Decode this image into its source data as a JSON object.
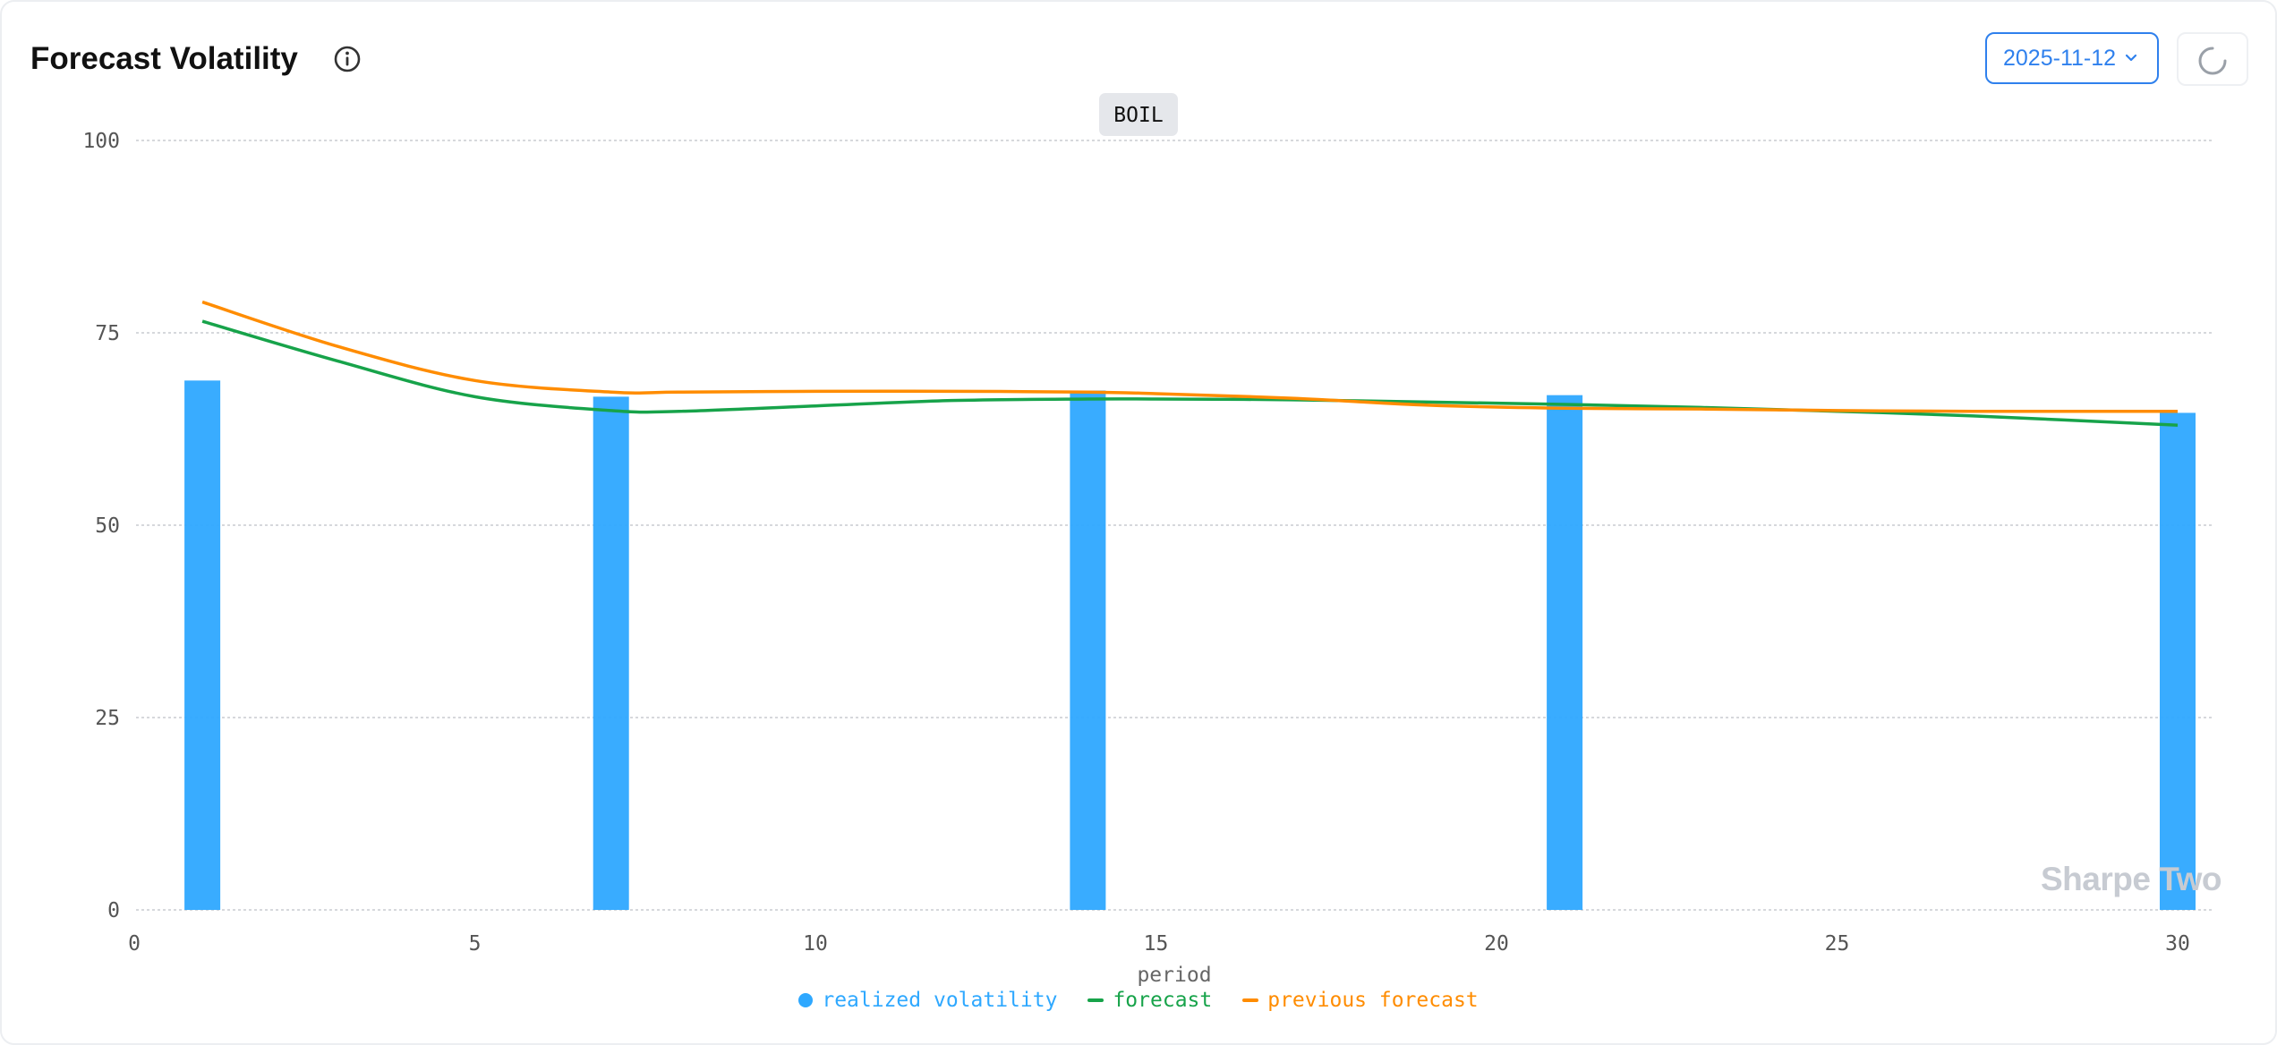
{
  "header": {
    "title": "Forecast Volatility",
    "date_value": "2025-11-12",
    "info_icon": "info-icon",
    "refresh_icon": "spinner-icon"
  },
  "watermark": "Sharpe Two",
  "colors": {
    "realized": "#2ea8ff",
    "forecast": "#17a34a",
    "previous": "#ff8c00",
    "accent": "#2f80ed"
  },
  "legend": {
    "realized": "realized volatility",
    "forecast": "forecast",
    "previous": "previous forecast"
  },
  "chart_data": {
    "type": "bar",
    "title": "BOIL",
    "xlabel": "period",
    "ylabel": "",
    "xlim": [
      0,
      30
    ],
    "ylim": [
      0,
      100
    ],
    "x_ticks": [
      0,
      5,
      10,
      15,
      20,
      25,
      30
    ],
    "y_ticks": [
      0,
      25,
      50,
      75,
      100
    ],
    "grid": true,
    "legend_position": "bottom-center",
    "series": [
      {
        "name": "realized volatility",
        "type": "bar",
        "x": [
          1,
          7,
          14,
          21,
          30
        ],
        "values": [
          68.8,
          66.7,
          67.5,
          66.9,
          64.6
        ]
      },
      {
        "name": "forecast",
        "type": "line",
        "x": [
          1,
          3,
          5,
          7,
          8,
          10,
          12,
          14,
          15,
          17,
          19,
          21,
          23,
          25,
          27,
          30
        ],
        "values": [
          76.5,
          71.3,
          66.7,
          64.9,
          64.8,
          65.5,
          66.2,
          66.4,
          66.4,
          66.3,
          66.0,
          65.7,
          65.3,
          64.8,
          64.2,
          63.0
        ]
      },
      {
        "name": "previous forecast",
        "type": "line",
        "x": [
          1,
          3,
          5,
          7,
          8,
          10,
          12,
          14,
          15,
          17,
          19,
          21,
          23,
          25,
          27,
          30
        ],
        "values": [
          79.0,
          73.2,
          68.8,
          67.3,
          67.3,
          67.4,
          67.4,
          67.3,
          67.1,
          66.5,
          65.6,
          65.2,
          65.1,
          64.9,
          64.8,
          64.8
        ]
      }
    ]
  }
}
